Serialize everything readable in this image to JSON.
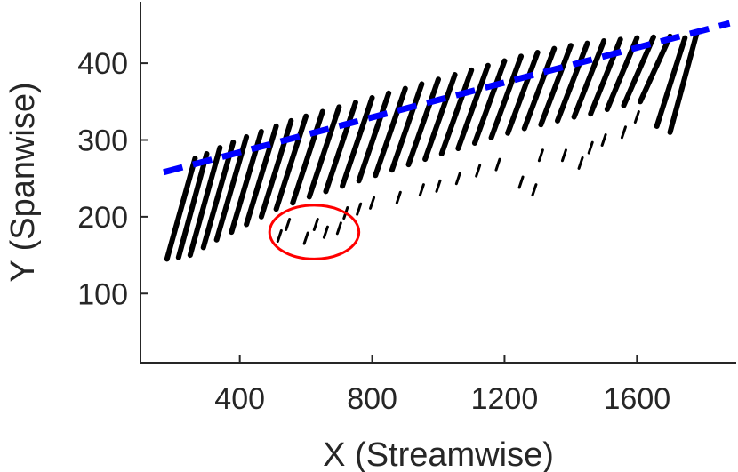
{
  "chart_data": {
    "type": "scatter",
    "title": "",
    "xlabel": "X (Streamwise)",
    "ylabel": "Y (Spanwise)",
    "xlim": [
      100,
      1900
    ],
    "ylim": [
      10,
      480
    ],
    "xticks": [
      400,
      800,
      1200,
      1600
    ],
    "yticks": [
      100,
      200,
      300,
      400
    ],
    "xtick_labels": [
      "400",
      "800",
      "1200",
      "1600"
    ],
    "ytick_labels": [
      "100",
      "200",
      "300",
      "400"
    ],
    "grid": false,
    "streaks": [
      {
        "x0": 180,
        "y0": 145,
        "x1": 265,
        "y1": 276
      },
      {
        "x0": 215,
        "y0": 147,
        "x1": 300,
        "y1": 282
      },
      {
        "x0": 250,
        "y0": 150,
        "x1": 340,
        "y1": 290
      },
      {
        "x0": 290,
        "y0": 160,
        "x1": 380,
        "y1": 297
      },
      {
        "x0": 330,
        "y0": 170,
        "x1": 420,
        "y1": 304
      },
      {
        "x0": 375,
        "y0": 180,
        "x1": 465,
        "y1": 311
      },
      {
        "x0": 420,
        "y0": 190,
        "x1": 510,
        "y1": 318
      },
      {
        "x0": 465,
        "y0": 200,
        "x1": 555,
        "y1": 325
      },
      {
        "x0": 510,
        "y0": 210,
        "x1": 600,
        "y1": 331
      },
      {
        "x0": 560,
        "y0": 218,
        "x1": 650,
        "y1": 337
      },
      {
        "x0": 610,
        "y0": 226,
        "x1": 700,
        "y1": 343
      },
      {
        "x0": 660,
        "y0": 233,
        "x1": 750,
        "y1": 349
      },
      {
        "x0": 710,
        "y0": 240,
        "x1": 800,
        "y1": 355
      },
      {
        "x0": 760,
        "y0": 247,
        "x1": 850,
        "y1": 361
      },
      {
        "x0": 810,
        "y0": 254,
        "x1": 900,
        "y1": 367
      },
      {
        "x0": 860,
        "y0": 261,
        "x1": 950,
        "y1": 373
      },
      {
        "x0": 910,
        "y0": 268,
        "x1": 1000,
        "y1": 379
      },
      {
        "x0": 960,
        "y0": 275,
        "x1": 1050,
        "y1": 385
      },
      {
        "x0": 1010,
        "y0": 282,
        "x1": 1100,
        "y1": 391
      },
      {
        "x0": 1060,
        "y0": 289,
        "x1": 1150,
        "y1": 397
      },
      {
        "x0": 1110,
        "y0": 296,
        "x1": 1200,
        "y1": 403
      },
      {
        "x0": 1160,
        "y0": 303,
        "x1": 1250,
        "y1": 409
      },
      {
        "x0": 1210,
        "y0": 309,
        "x1": 1300,
        "y1": 414
      },
      {
        "x0": 1260,
        "y0": 315,
        "x1": 1350,
        "y1": 419
      },
      {
        "x0": 1310,
        "y0": 320,
        "x1": 1400,
        "y1": 423
      },
      {
        "x0": 1360,
        "y0": 325,
        "x1": 1450,
        "y1": 426
      },
      {
        "x0": 1410,
        "y0": 330,
        "x1": 1500,
        "y1": 429
      },
      {
        "x0": 1460,
        "y0": 334,
        "x1": 1550,
        "y1": 431
      },
      {
        "x0": 1510,
        "y0": 340,
        "x1": 1600,
        "y1": 433
      },
      {
        "x0": 1560,
        "y0": 345,
        "x1": 1650,
        "y1": 434
      },
      {
        "x0": 1610,
        "y0": 350,
        "x1": 1700,
        "y1": 435
      },
      {
        "x0": 1660,
        "y0": 318,
        "x1": 1745,
        "y1": 433
      },
      {
        "x0": 1700,
        "y0": 310,
        "x1": 1780,
        "y1": 438
      }
    ],
    "fragments": [
      {
        "x": 520,
        "y": 175
      },
      {
        "x": 545,
        "y": 190
      },
      {
        "x": 600,
        "y": 172
      },
      {
        "x": 630,
        "y": 190
      },
      {
        "x": 660,
        "y": 180
      },
      {
        "x": 700,
        "y": 185
      },
      {
        "x": 720,
        "y": 205
      },
      {
        "x": 760,
        "y": 210
      },
      {
        "x": 800,
        "y": 218
      },
      {
        "x": 880,
        "y": 225
      },
      {
        "x": 950,
        "y": 235
      },
      {
        "x": 1000,
        "y": 240
      },
      {
        "x": 1060,
        "y": 250
      },
      {
        "x": 1120,
        "y": 260
      },
      {
        "x": 1180,
        "y": 268
      },
      {
        "x": 1250,
        "y": 245
      },
      {
        "x": 1290,
        "y": 235
      },
      {
        "x": 1310,
        "y": 280
      },
      {
        "x": 1380,
        "y": 280
      },
      {
        "x": 1430,
        "y": 270
      },
      {
        "x": 1460,
        "y": 290
      },
      {
        "x": 1500,
        "y": 300
      },
      {
        "x": 1560,
        "y": 310
      },
      {
        "x": 1600,
        "y": 330
      }
    ],
    "dashed_line": {
      "color": "#0000ff",
      "x": [
        170,
        1880
      ],
      "y": [
        258,
        452
      ]
    },
    "highlight_ellipse": {
      "color": "#ff0000",
      "cx": 625,
      "cy": 180,
      "rx": 135,
      "ry": 35
    }
  }
}
